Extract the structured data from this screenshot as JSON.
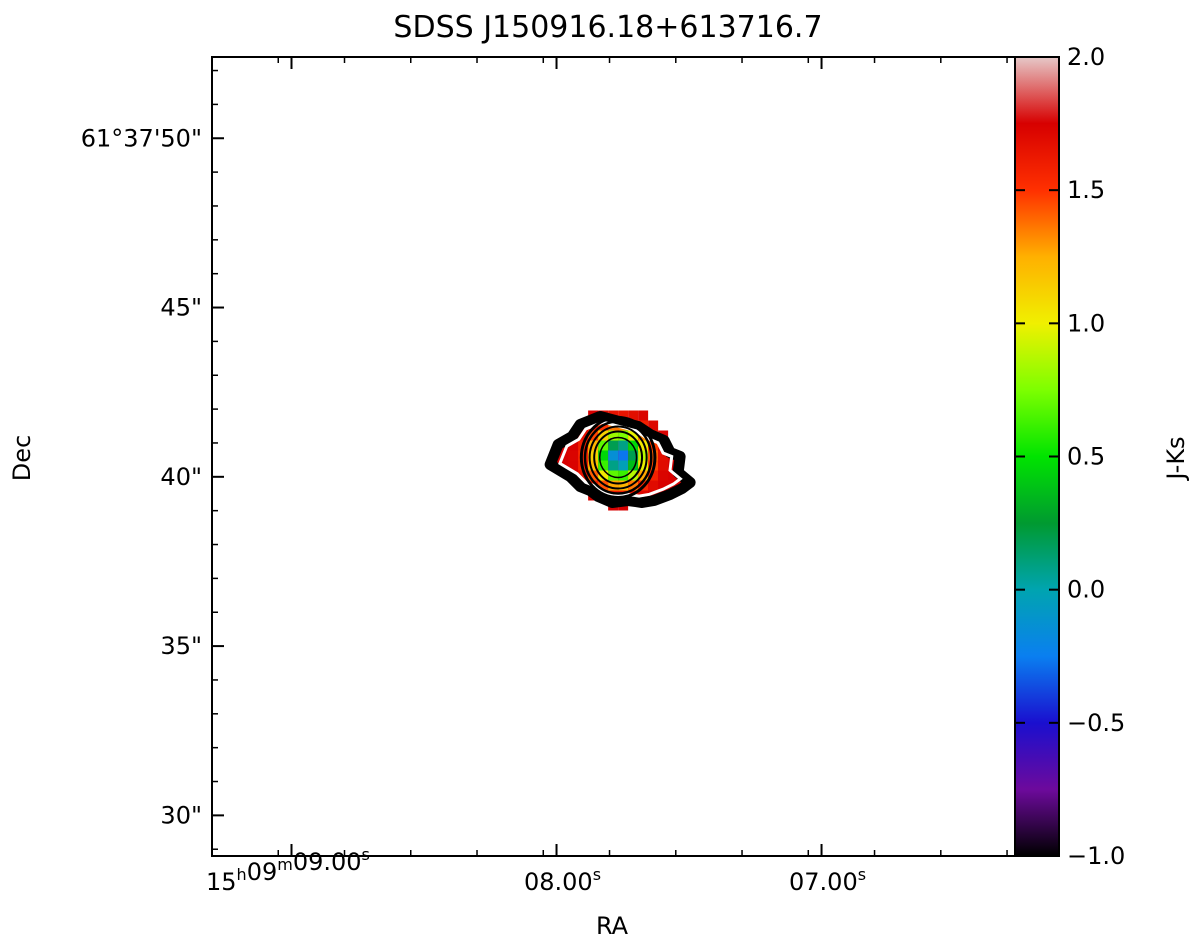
{
  "chart_data": {
    "type": "heatmap",
    "title": "SDSS J150916.18+613716.7",
    "xlabel": "RA",
    "ylabel": "Dec",
    "colorbar_label": "J-Ks",
    "colorbar_range": [
      -1.0,
      2.0
    ],
    "colorbar_ticks": [
      "2.0",
      "1.5",
      "1.0",
      "0.5",
      "0.0",
      "−0.5",
      "−1.0"
    ],
    "colorbar_tick_values": [
      2.0,
      1.5,
      1.0,
      0.5,
      0.0,
      -0.5,
      -1.0
    ],
    "colormap": [
      "#000000",
      "#6d0a9c",
      "#1a0fcf",
      "#0a7ff0",
      "#00a4b0",
      "#009a30",
      "#00e400",
      "#7dff00",
      "#f0f000",
      "#ffb000",
      "#ff3000",
      "#d70000",
      "#e6c8c8"
    ],
    "xlim_seconds": [
      9.3,
      6.27
    ],
    "ylim_arcsec": [
      28.8,
      52.4
    ],
    "ra_prefix": {
      "h": "15",
      "m": "09"
    },
    "x_ticks": [
      {
        "hours": "15",
        "minutes": "09",
        "seconds": "09.00",
        "value": 9.0
      },
      {
        "hours": "",
        "minutes": "",
        "seconds": "08.00",
        "value": 8.0
      },
      {
        "hours": "",
        "minutes": "",
        "seconds": "07.00",
        "value": 7.0
      }
    ],
    "y_ticks": [
      {
        "label": "61°37'50\"",
        "value": 50
      },
      {
        "label": "45\"",
        "value": 45
      },
      {
        "label": "40\"",
        "value": 40
      },
      {
        "label": "35\"",
        "value": 35
      },
      {
        "label": "30\"",
        "value": 30
      }
    ],
    "source": {
      "ra_seconds": 7.76,
      "dec_arcsec": 40.6,
      "color_center": -0.3,
      "color_edge": 1.8
    },
    "grid": false,
    "legend": "none"
  }
}
